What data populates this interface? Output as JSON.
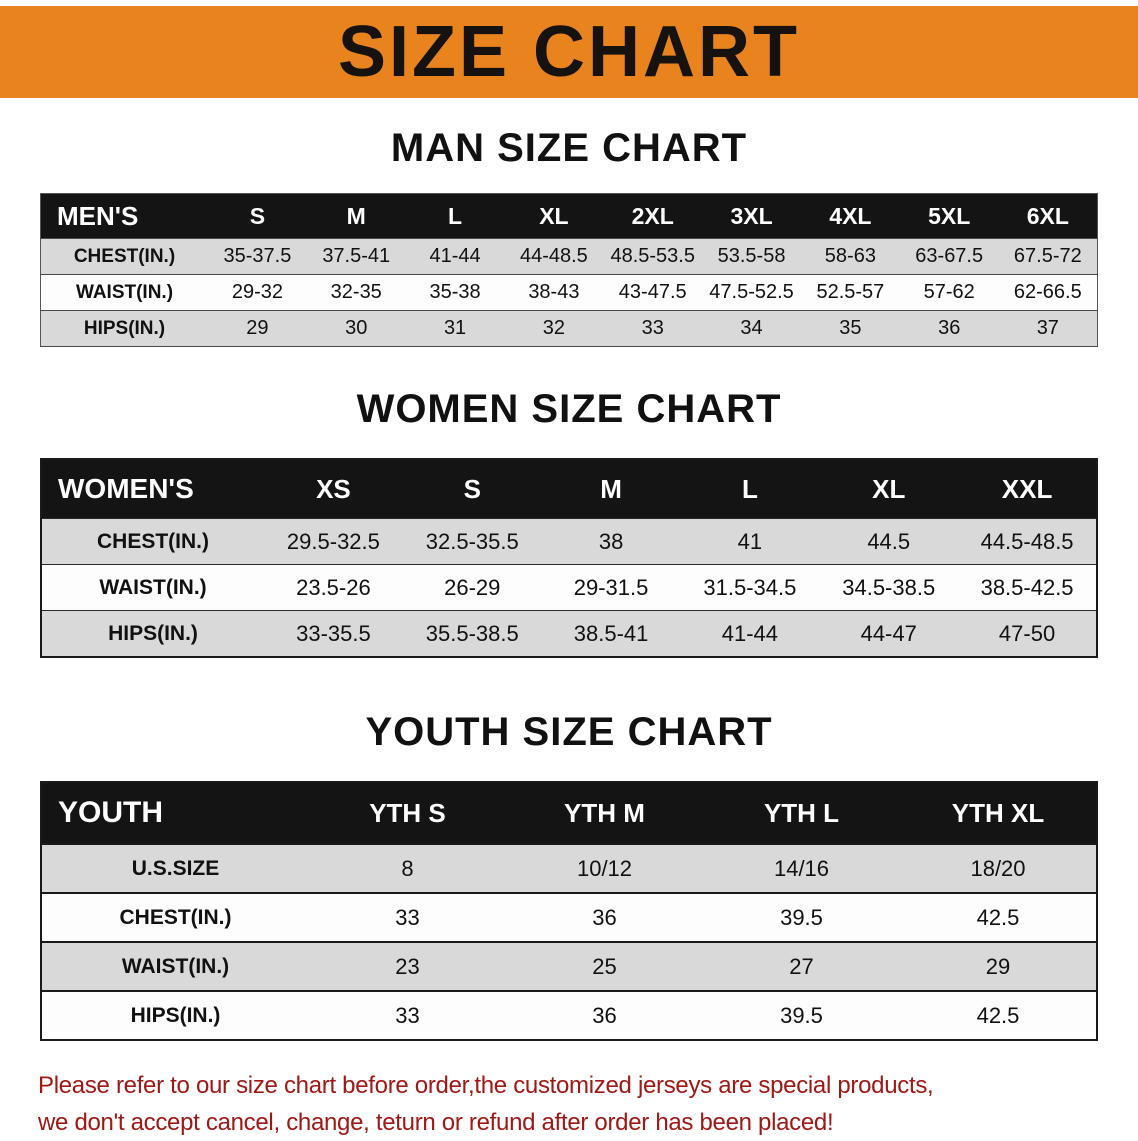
{
  "banner": {
    "title": "SIZE CHART"
  },
  "sections": {
    "men": {
      "heading": "MAN SIZE CHART",
      "table": {
        "header": [
          "MEN'S",
          "S",
          "M",
          "L",
          "XL",
          "2XL",
          "3XL",
          "4XL",
          "5XL",
          "6XL"
        ],
        "rows": [
          [
            "CHEST(IN.)",
            "35-37.5",
            "37.5-41",
            "41-44",
            "44-48.5",
            "48.5-53.5",
            "53.5-58",
            "58-63",
            "63-67.5",
            "67.5-72"
          ],
          [
            "WAIST(IN.)",
            "29-32",
            "32-35",
            "35-38",
            "38-43",
            "43-47.5",
            "47.5-52.5",
            "52.5-57",
            "57-62",
            "62-66.5"
          ],
          [
            "HIPS(IN.)",
            "29",
            "30",
            "31",
            "32",
            "33",
            "34",
            "35",
            "36",
            "37"
          ]
        ]
      }
    },
    "women": {
      "heading": "WOMEN SIZE CHART",
      "table": {
        "header": [
          "WOMEN'S",
          "XS",
          "S",
          "M",
          "L",
          "XL",
          "XXL"
        ],
        "rows": [
          [
            "CHEST(IN.)",
            "29.5-32.5",
            "32.5-35.5",
            "38",
            "41",
            "44.5",
            "44.5-48.5"
          ],
          [
            "WAIST(IN.)",
            "23.5-26",
            "26-29",
            "29-31.5",
            "31.5-34.5",
            "34.5-38.5",
            "38.5-42.5"
          ],
          [
            "HIPS(IN.)",
            "33-35.5",
            "35.5-38.5",
            "38.5-41",
            "41-44",
            "44-47",
            "47-50"
          ]
        ]
      }
    },
    "youth": {
      "heading": "YOUTH SIZE CHART",
      "table": {
        "header": [
          "YOUTH",
          "YTH S",
          "YTH M",
          "YTH L",
          "YTH XL"
        ],
        "rows": [
          [
            "U.S.SIZE",
            "8",
            "10/12",
            "14/16",
            "18/20"
          ],
          [
            "CHEST(IN.)",
            "33",
            "36",
            "39.5",
            "42.5"
          ],
          [
            "WAIST(IN.)",
            "23",
            "25",
            "27",
            "29"
          ],
          [
            "HIPS(IN.)",
            "33",
            "36",
            "39.5",
            "42.5"
          ]
        ]
      }
    }
  },
  "footer": {
    "line1": "Please refer to our size chart before order,the customized jerseys are special products,",
    "line2": "we don't accept cancel, change, teturn or refund after order has been placed!"
  },
  "colors": {
    "banner_bg": "#E8831D",
    "header_row_bg": "#141414",
    "header_row_text": "#FFFFFF",
    "row_alt_bg": "#D9D9D9",
    "heading_text": "#111111",
    "notice_text": "#A01815"
  }
}
